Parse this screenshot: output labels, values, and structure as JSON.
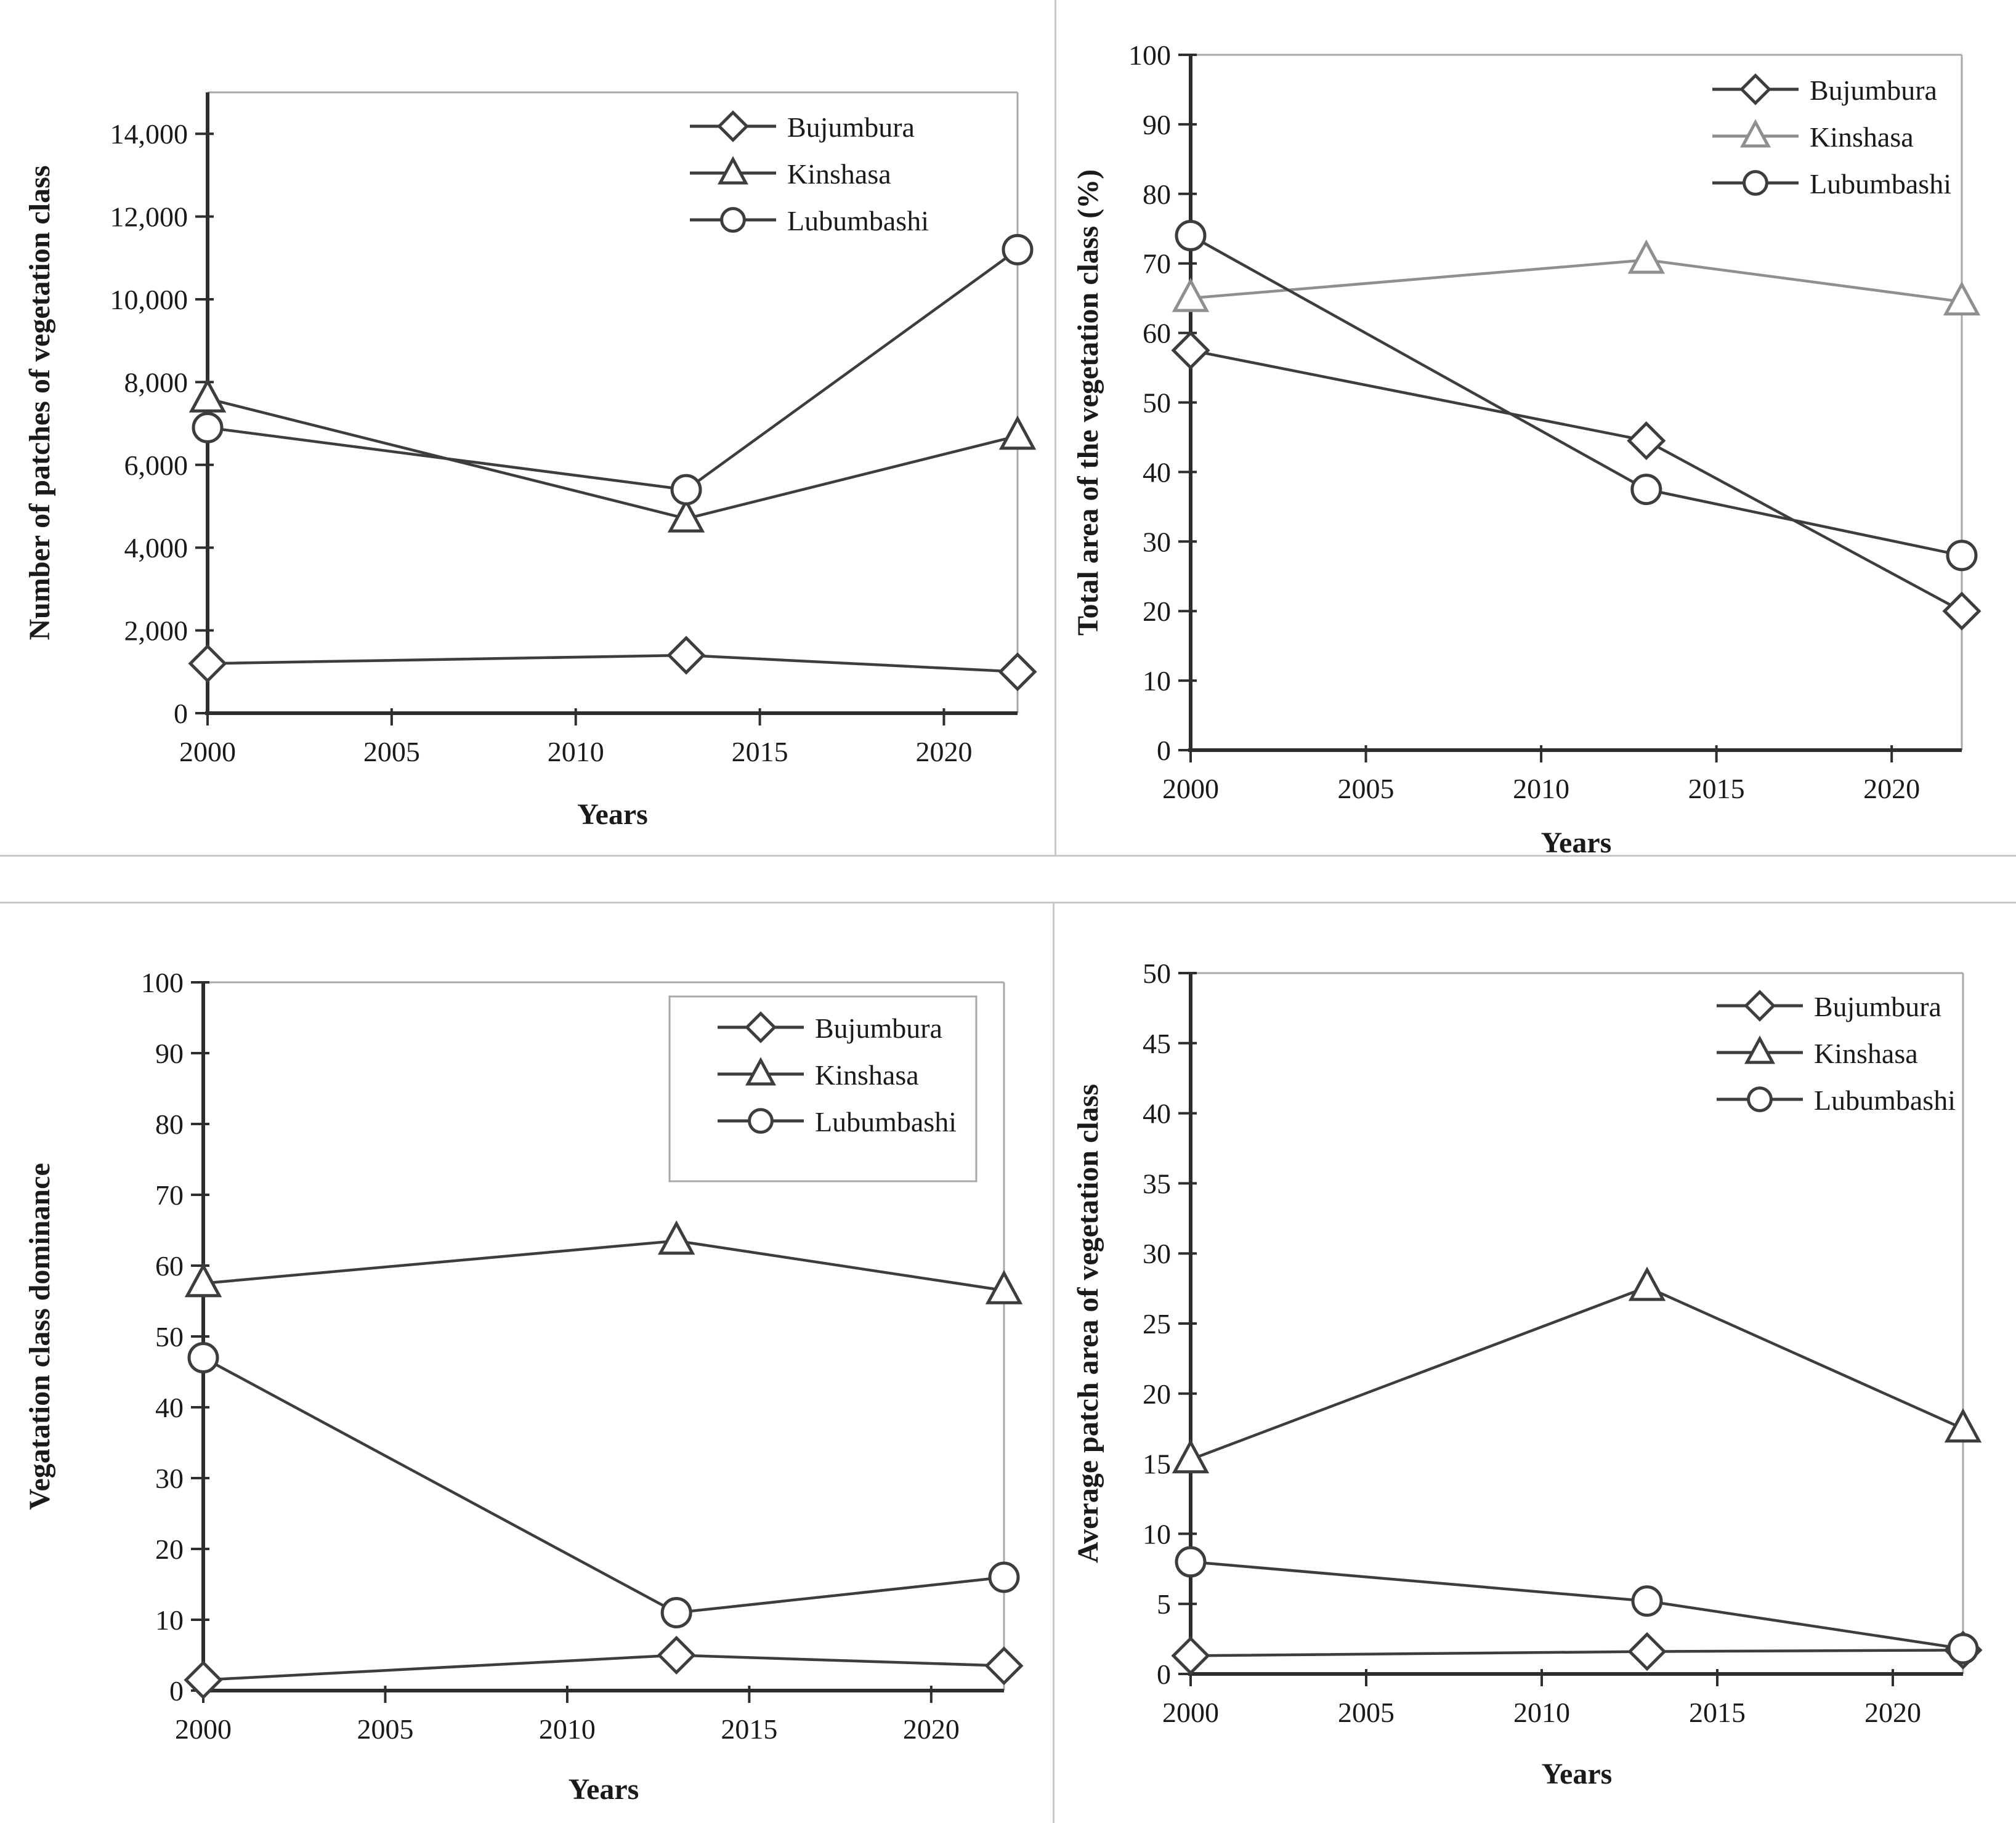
{
  "figure": {
    "background": "#ffffff",
    "cities": [
      "Bujumbura",
      "Kinshasa",
      "Lubumbashi"
    ]
  },
  "styles": {
    "line_color": "#3d3d3d",
    "light_series_color": "#8f8f8f",
    "axis_color": "#2e2e2e",
    "border_color": "#a8a8a8",
    "text_color": "#1a1a1a",
    "marker_fill": "#ffffff",
    "divider_color": "#c9c9c9"
  },
  "chart_data": [
    {
      "type": "line",
      "title": "",
      "xlabel": "Years",
      "ylabel": "Number of patches of vegetation class",
      "x": [
        2000,
        2013,
        2022
      ],
      "xlim": [
        2000,
        2022
      ],
      "xticks": [
        2000,
        2005,
        2010,
        2015,
        2020
      ],
      "ylim": [
        0,
        15000
      ],
      "yticks": [
        0,
        2000,
        4000,
        6000,
        8000,
        10000,
        12000,
        14000
      ],
      "ytick_labels": [
        "0",
        "2,000",
        "4,000",
        "6,000",
        "8,000",
        "10,000",
        "12,000",
        "14,000"
      ],
      "grid": false,
      "legend_position": "top-right",
      "legend_box": false,
      "series": [
        {
          "name": "Bujumbura",
          "marker": "diamond",
          "color": "#3d3d3d",
          "values": [
            1200,
            1400,
            1000
          ]
        },
        {
          "name": "Kinshasa",
          "marker": "triangle",
          "color": "#3d3d3d",
          "values": [
            7600,
            4700,
            6700
          ]
        },
        {
          "name": "Lubumbashi",
          "marker": "circle",
          "color": "#3d3d3d",
          "values": [
            6900,
            5400,
            11200
          ]
        }
      ]
    },
    {
      "type": "line",
      "title": "",
      "xlabel": "Years",
      "ylabel": "Total area of the vegetation class (%)",
      "x": [
        2000,
        2013,
        2022
      ],
      "xlim": [
        2000,
        2022
      ],
      "xticks": [
        2000,
        2005,
        2010,
        2015,
        2020
      ],
      "ylim": [
        0,
        100
      ],
      "yticks": [
        0,
        10,
        20,
        30,
        40,
        50,
        60,
        70,
        80,
        90,
        100
      ],
      "ytick_labels": [
        "0",
        "10",
        "20",
        "30",
        "40",
        "50",
        "60",
        "70",
        "80",
        "90",
        "100"
      ],
      "grid": false,
      "legend_position": "top-right",
      "legend_box": false,
      "series": [
        {
          "name": "Bujumbura",
          "marker": "diamond",
          "color": "#3d3d3d",
          "values": [
            57.5,
            44.5,
            20
          ]
        },
        {
          "name": "Kinshasa",
          "marker": "triangle",
          "color": "#8f8f8f",
          "values": [
            65,
            70.5,
            64.5
          ]
        },
        {
          "name": "Lubumbashi",
          "marker": "circle",
          "color": "#3d3d3d",
          "values": [
            74,
            37.5,
            28
          ]
        }
      ]
    },
    {
      "type": "line",
      "title": "",
      "xlabel": "Years",
      "ylabel": "Vegatation class dominance",
      "x": [
        2000,
        2013,
        2022
      ],
      "xlim": [
        2000,
        2022
      ],
      "xticks": [
        2000,
        2005,
        2010,
        2015,
        2020
      ],
      "ylim": [
        0,
        100
      ],
      "yticks": [
        0,
        10,
        20,
        30,
        40,
        50,
        60,
        70,
        80,
        90,
        100
      ],
      "ytick_labels": [
        "0",
        "10",
        "20",
        "30",
        "40",
        "50",
        "60",
        "70",
        "80",
        "90",
        "100"
      ],
      "grid": false,
      "legend_position": "top-right",
      "legend_box": true,
      "series": [
        {
          "name": "Bujumbura",
          "marker": "diamond",
          "color": "#3d3d3d",
          "values": [
            1.5,
            5,
            3.5
          ]
        },
        {
          "name": "Kinshasa",
          "marker": "triangle",
          "color": "#3d3d3d",
          "values": [
            57.5,
            63.5,
            56.5
          ]
        },
        {
          "name": "Lubumbashi",
          "marker": "circle",
          "color": "#3d3d3d",
          "values": [
            47,
            11,
            16
          ]
        }
      ]
    },
    {
      "type": "line",
      "title": "",
      "xlabel": "Years",
      "ylabel": "Average patch area of vegetation class",
      "x": [
        2000,
        2013,
        2022
      ],
      "xlim": [
        2000,
        2022
      ],
      "xticks": [
        2000,
        2005,
        2010,
        2015,
        2020
      ],
      "ylim": [
        0,
        50
      ],
      "yticks": [
        0,
        5,
        10,
        15,
        20,
        25,
        30,
        35,
        40,
        45,
        50
      ],
      "ytick_labels": [
        "0",
        "5",
        "10",
        "15",
        "20",
        "25",
        "30",
        "35",
        "40",
        "45",
        "50"
      ],
      "grid": false,
      "legend_position": "top-right",
      "legend_box": false,
      "series": [
        {
          "name": "Bujumbura",
          "marker": "diamond",
          "color": "#3d3d3d",
          "values": [
            1.3,
            1.6,
            1.7
          ]
        },
        {
          "name": "Kinshasa",
          "marker": "triangle",
          "color": "#3d3d3d",
          "values": [
            15.3,
            27.6,
            17.5
          ]
        },
        {
          "name": "Lubumbashi",
          "marker": "circle",
          "color": "#3d3d3d",
          "values": [
            8,
            5.2,
            1.8
          ]
        }
      ]
    }
  ]
}
